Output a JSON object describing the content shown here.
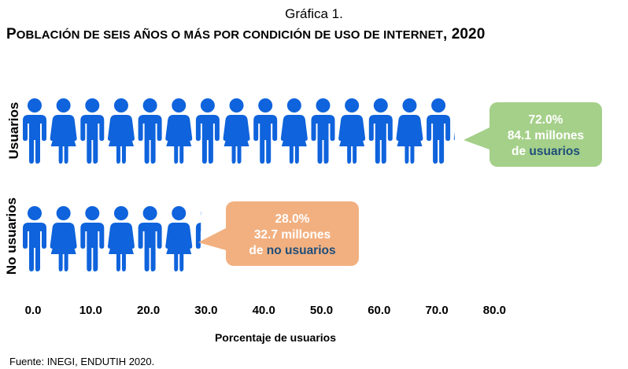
{
  "header": {
    "subtitle": "Gráfica 1.",
    "title_first": "P",
    "title_rest": "OBLACIÓN DE SEIS AÑOS O MÁS POR CONDICIÓN DE USO DE INTERNET",
    "title_year": ", 2020"
  },
  "chart_data": {
    "type": "bar",
    "orientation": "horizontal",
    "style": "pictograph",
    "categories": [
      "Usuarios",
      "No usuarios"
    ],
    "values": [
      72.0,
      28.0
    ],
    "xlabel": "Porcentaje de usuarios",
    "xlim": [
      0,
      80
    ],
    "xticks": [
      "0.0",
      "10.0",
      "20.0",
      "30.0",
      "40.0",
      "50.0",
      "60.0",
      "70.0",
      "80.0"
    ],
    "bar_colors": [
      "#0f63dc",
      "#0f63dc"
    ],
    "annotations": [
      {
        "category": "Usuarios",
        "line1": "72.0%",
        "line2": "84.1 millones",
        "line3_a": "de ",
        "line3_b": "usuarios",
        "color": "#a5d08a"
      },
      {
        "category": "No usuarios",
        "line1": "28.0%",
        "line2": "32.7 millones",
        "line3_a": "de ",
        "line3_b": "no usuarios",
        "color": "#f2b080"
      }
    ]
  },
  "footer": {
    "source": "Fuente: INEGI, ENDUTIH 2020."
  }
}
